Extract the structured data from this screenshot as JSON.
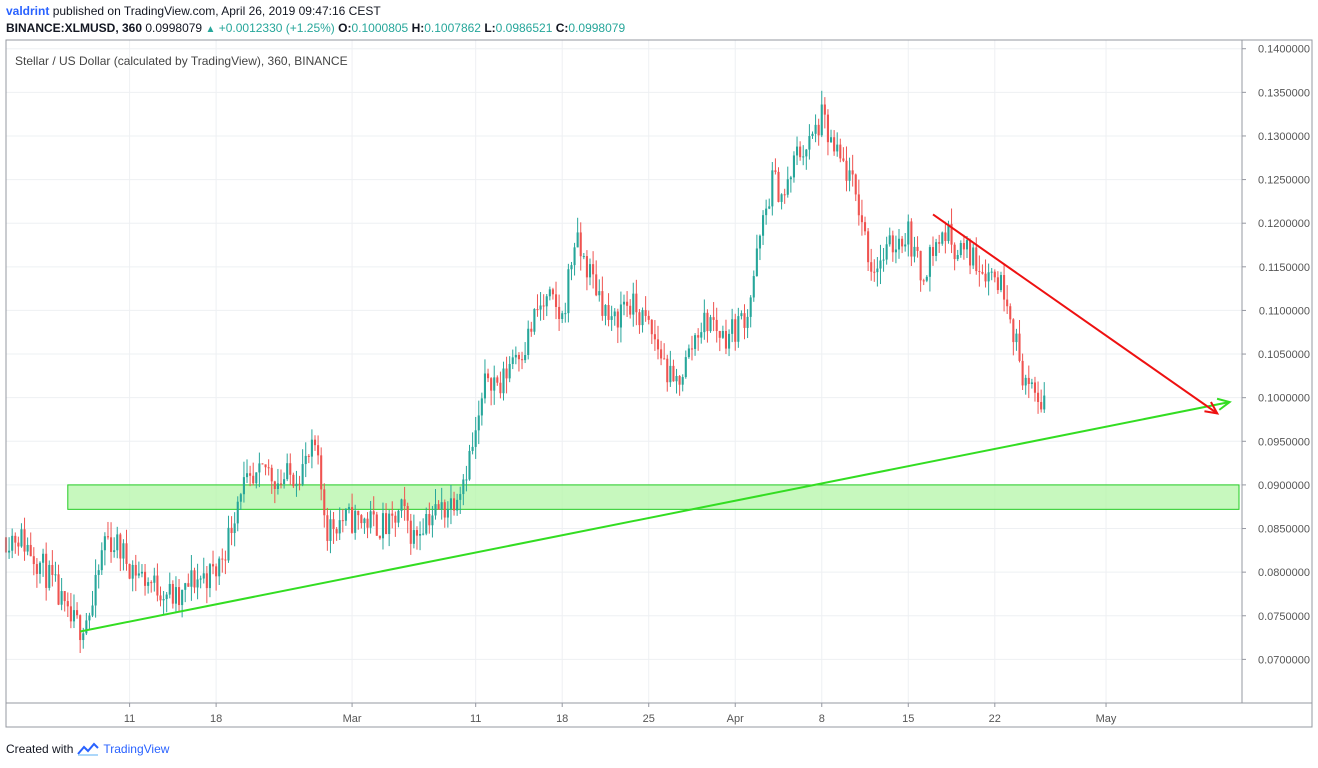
{
  "header": {
    "author": "valdrint",
    "published_text": "published on TradingView.com, April 26, 2019 09:47:16 CEST",
    "symbol": "BINANCE:XLMUSD, 360",
    "last": "0.0998079",
    "change": "+0.0012330 (+1.25%)",
    "o_label": "O:",
    "o_value": "0.1000805",
    "h_label": "H:",
    "h_value": "0.1007862",
    "l_label": "L:",
    "l_value": "0.0986521",
    "c_label": "C:",
    "c_value": "0.0998079"
  },
  "footer": {
    "created_with": "Created with",
    "brand": "TradingView"
  },
  "colors": {
    "up": "#26a69a",
    "down": "#ef5350",
    "support": "#33dd22",
    "resistance": "#ee1111",
    "zone_fill": "#b4f5a8",
    "zone_stroke": "#22cc22",
    "grid": "#eef0f3"
  },
  "chart_data": {
    "type": "candlestick",
    "title": "Stellar / US Dollar (calculated by TradingView), 360, BINANCE",
    "ylim": [
      0.065,
      0.141
    ],
    "y_ticks": [
      "0.1400000",
      "0.1350000",
      "0.1300000",
      "0.1250000",
      "0.1200000",
      "0.1150000",
      "0.1100000",
      "0.1050000",
      "0.1000000",
      "0.0950000",
      "0.0900000",
      "0.0850000",
      "0.0800000",
      "0.0750000",
      "0.0700000"
    ],
    "x_ticks": [
      "11",
      "18",
      "Mar",
      "11",
      "18",
      "25",
      "Apr",
      "8",
      "15",
      "22",
      "May"
    ],
    "x_dates": [
      "2019-02-11",
      "2019-02-18",
      "2019-03-01",
      "2019-03-11",
      "2019-03-18",
      "2019-03-25",
      "2019-04-01",
      "2019-04-08",
      "2019-04-15",
      "2019-04-22",
      "2019-05-01"
    ],
    "x_range": [
      "2019-02-01",
      "2019-05-12"
    ],
    "close_path": [
      [
        "2019-02-01",
        0.084
      ],
      [
        "2019-02-02",
        0.0842
      ],
      [
        "2019-02-03",
        0.0825
      ],
      [
        "2019-02-04",
        0.0805
      ],
      [
        "2019-02-05",
        0.078
      ],
      [
        "2019-02-06",
        0.0745
      ],
      [
        "2019-02-07",
        0.0738
      ],
      [
        "2019-02-08",
        0.076
      ],
      [
        "2019-02-09",
        0.084
      ],
      [
        "2019-02-10",
        0.083
      ],
      [
        "2019-02-11",
        0.081
      ],
      [
        "2019-02-12",
        0.0795
      ],
      [
        "2019-02-13",
        0.0785
      ],
      [
        "2019-02-14",
        0.0778
      ],
      [
        "2019-02-15",
        0.0765
      ],
      [
        "2019-02-16",
        0.079
      ],
      [
        "2019-02-17",
        0.0795
      ],
      [
        "2019-02-18",
        0.08
      ],
      [
        "2019-02-19",
        0.084
      ],
      [
        "2019-02-20",
        0.09
      ],
      [
        "2019-02-21",
        0.0895
      ],
      [
        "2019-02-22",
        0.092
      ],
      [
        "2019-02-23",
        0.0905
      ],
      [
        "2019-02-24",
        0.091
      ],
      [
        "2019-02-25",
        0.092
      ],
      [
        "2019-02-26",
        0.094
      ],
      [
        "2019-02-27",
        0.085
      ],
      [
        "2019-02-28",
        0.086
      ],
      [
        "2019-03-01",
        0.086
      ],
      [
        "2019-03-02",
        0.086
      ],
      [
        "2019-03-03",
        0.0855
      ],
      [
        "2019-03-04",
        0.085
      ],
      [
        "2019-03-05",
        0.087
      ],
      [
        "2019-03-06",
        0.084
      ],
      [
        "2019-03-07",
        0.0865
      ],
      [
        "2019-03-08",
        0.087
      ],
      [
        "2019-03-09",
        0.088
      ],
      [
        "2019-03-10",
        0.091
      ],
      [
        "2019-03-11",
        0.0955
      ],
      [
        "2019-03-12",
        0.103
      ],
      [
        "2019-03-13",
        0.101
      ],
      [
        "2019-03-14",
        0.105
      ],
      [
        "2019-03-15",
        0.106
      ],
      [
        "2019-03-16",
        0.11
      ],
      [
        "2019-03-17",
        0.111
      ],
      [
        "2019-03-18",
        0.109
      ],
      [
        "2019-03-19",
        0.118
      ],
      [
        "2019-03-20",
        0.115
      ],
      [
        "2019-03-21",
        0.112
      ],
      [
        "2019-03-22",
        0.108
      ],
      [
        "2019-03-23",
        0.111
      ],
      [
        "2019-03-24",
        0.11
      ],
      [
        "2019-03-25",
        0.108
      ],
      [
        "2019-03-26",
        0.105
      ],
      [
        "2019-03-27",
        0.101
      ],
      [
        "2019-03-28",
        0.104
      ],
      [
        "2019-03-29",
        0.108
      ],
      [
        "2019-03-30",
        0.109
      ],
      [
        "2019-03-31",
        0.107
      ],
      [
        "2019-04-01",
        0.108
      ],
      [
        "2019-04-02",
        0.11
      ],
      [
        "2019-04-03",
        0.118
      ],
      [
        "2019-04-04",
        0.125
      ],
      [
        "2019-04-05",
        0.123
      ],
      [
        "2019-04-06",
        0.128
      ],
      [
        "2019-04-07",
        0.129
      ],
      [
        "2019-04-08",
        0.132
      ],
      [
        "2019-04-09",
        0.128
      ],
      [
        "2019-04-10",
        0.126
      ],
      [
        "2019-04-11",
        0.122
      ],
      [
        "2019-04-12",
        0.115
      ],
      [
        "2019-04-13",
        0.116
      ],
      [
        "2019-04-14",
        0.118
      ],
      [
        "2019-04-15",
        0.119
      ],
      [
        "2019-04-16",
        0.114
      ],
      [
        "2019-04-17",
        0.117
      ],
      [
        "2019-04-18",
        0.119
      ],
      [
        "2019-04-19",
        0.117
      ],
      [
        "2019-04-20",
        0.1165
      ],
      [
        "2019-04-21",
        0.115
      ],
      [
        "2019-04-22",
        0.114
      ],
      [
        "2019-04-23",
        0.112
      ],
      [
        "2019-04-24",
        0.104
      ],
      [
        "2019-04-25",
        0.1
      ],
      [
        "2019-04-26",
        0.0998
      ]
    ],
    "zone": {
      "y": [
        0.0872,
        0.09
      ],
      "x": [
        "2019-02-06",
        "2019-05-12"
      ]
    },
    "support_line": {
      "from": [
        "2019-02-07",
        0.0732
      ],
      "to": [
        "2019-05-11",
        0.0995
      ]
    },
    "resistance_line": {
      "from": [
        "2019-04-17",
        0.121
      ],
      "to": [
        "2019-05-10",
        0.0982
      ]
    }
  }
}
